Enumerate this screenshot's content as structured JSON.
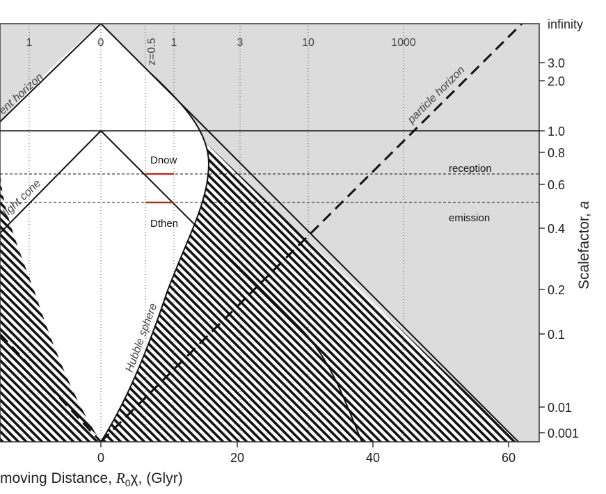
{
  "diagram": {
    "x_axis": {
      "title_prefix": "moving Distance, ",
      "title_symbol": "R",
      "title_sub": "0",
      "title_suffix": "χ, (Glyr)",
      "ticks": [
        "0",
        "20",
        "40",
        "60"
      ]
    },
    "y_axis": {
      "title_prefix": "Scalefactor, ",
      "title_symbol": "a",
      "ticks": [
        "infinity",
        "3.0",
        "2.0",
        "1.0",
        "0.8",
        "0.6",
        "0.4",
        "0.2",
        "0.1",
        "0.01",
        "0.001"
      ]
    },
    "redshift_ticks": [
      "1",
      "0",
      "1",
      "3",
      "10",
      "1000"
    ],
    "z_marker": "z=0.5",
    "curve_labels": {
      "event_horizon": "ent horizon",
      "light_cone": "light cone",
      "hubble_sphere": "Hubble sphere",
      "particle_horizon": "particle horizon"
    },
    "annotations": {
      "dnow": "Dnow",
      "dthen": "Dthen",
      "reception": "reception",
      "emission": "emission"
    },
    "colors": {
      "shade": "#dcdcdc",
      "hatch": "#111111",
      "distance_marker": "#b03020"
    }
  }
}
